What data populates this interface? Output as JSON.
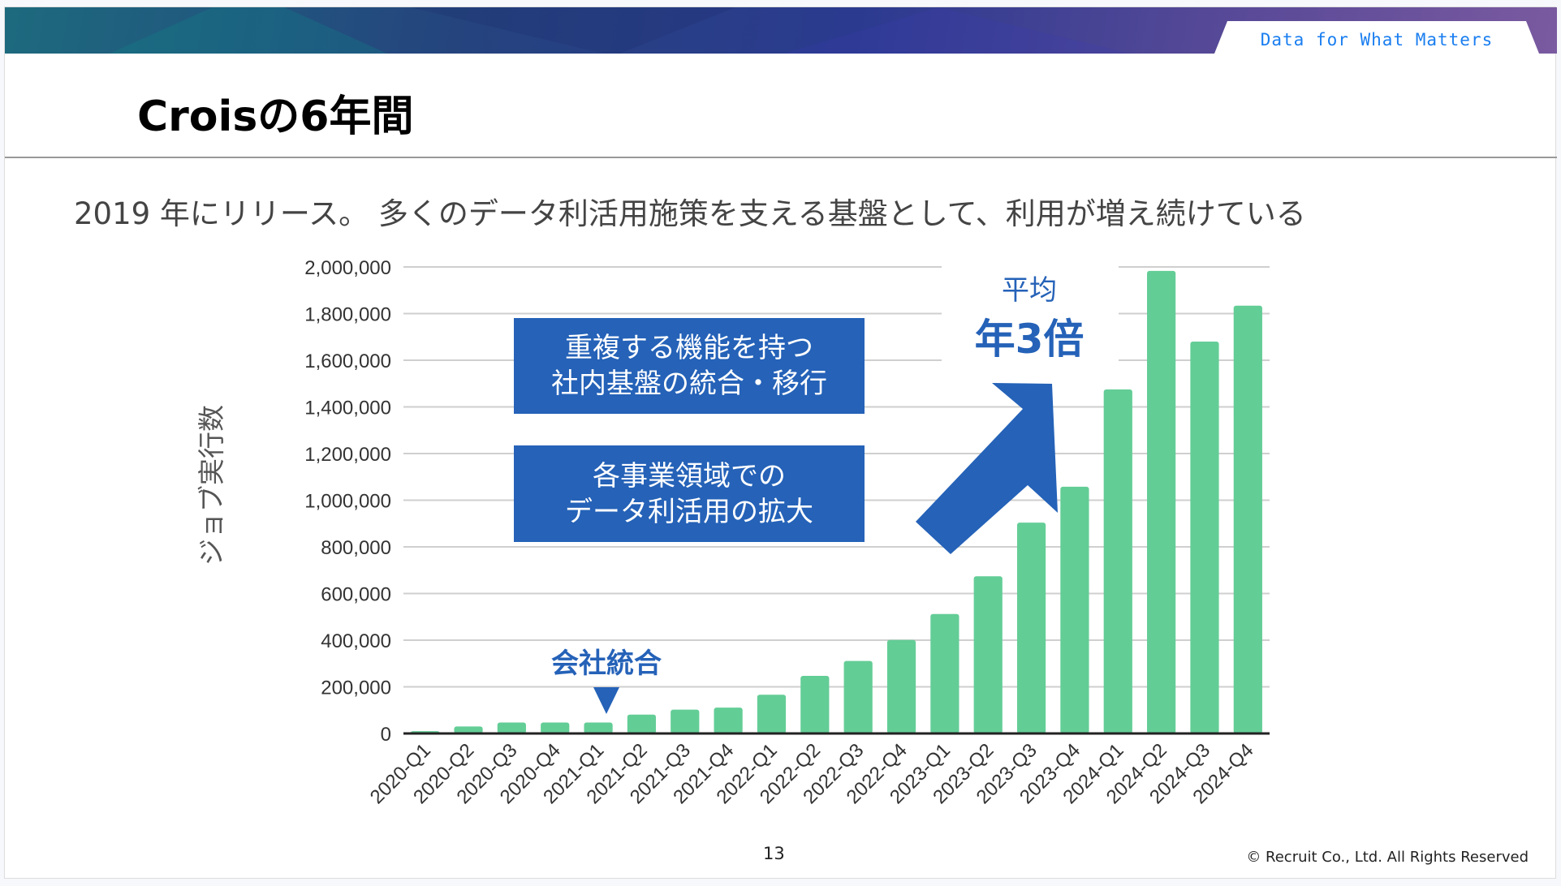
{
  "header": {
    "tagline": "Data for What Matters",
    "title": "Croisの6年間",
    "subtitle": "2019 年にリリース。 多くのデータ利活用施策を支える基盤として、利用が増え続けている"
  },
  "annotations": {
    "box1": [
      "重複する機能を持つ",
      "社内基盤の統合・移行"
    ],
    "box2": [
      "各事業領域での",
      "データ利活用の拡大"
    ],
    "avg_label": "平均",
    "avg_value": "年3倍",
    "merger_label": "会社統合"
  },
  "footer": {
    "page": "13",
    "copyright": "© Recruit Co., Ltd. All Rights Reserved"
  },
  "colors": {
    "bar": "#63cd96",
    "accent": "#2562b8",
    "tagline": "#1a7ef0"
  },
  "chart_data": {
    "type": "bar",
    "ylabel": "ジョブ実行数",
    "ylim": [
      0,
      2000000
    ],
    "yticks": [
      "0",
      "200,000",
      "400,000",
      "600,000",
      "800,000",
      "1,000,000",
      "1,200,000",
      "1,400,000",
      "1,600,000",
      "1,800,000",
      "2,000,000"
    ],
    "grid": true,
    "categories": [
      "2020-Q1",
      "2020-Q2",
      "2020-Q3",
      "2020-Q4",
      "2021-Q1",
      "2021-Q2",
      "2021-Q3",
      "2021-Q4",
      "2022-Q1",
      "2022-Q2",
      "2022-Q3",
      "2022-Q4",
      "2023-Q1",
      "2023-Q2",
      "2023-Q3",
      "2023-Q4",
      "2024-Q1",
      "2024-Q2",
      "2024-Q3",
      "2024-Q4"
    ],
    "values": [
      10000,
      30000,
      47000,
      47000,
      47000,
      81000,
      102000,
      111000,
      166000,
      247000,
      311000,
      401000,
      512000,
      674000,
      904000,
      1058000,
      1475000,
      1983000,
      1680000,
      1834000
    ]
  }
}
